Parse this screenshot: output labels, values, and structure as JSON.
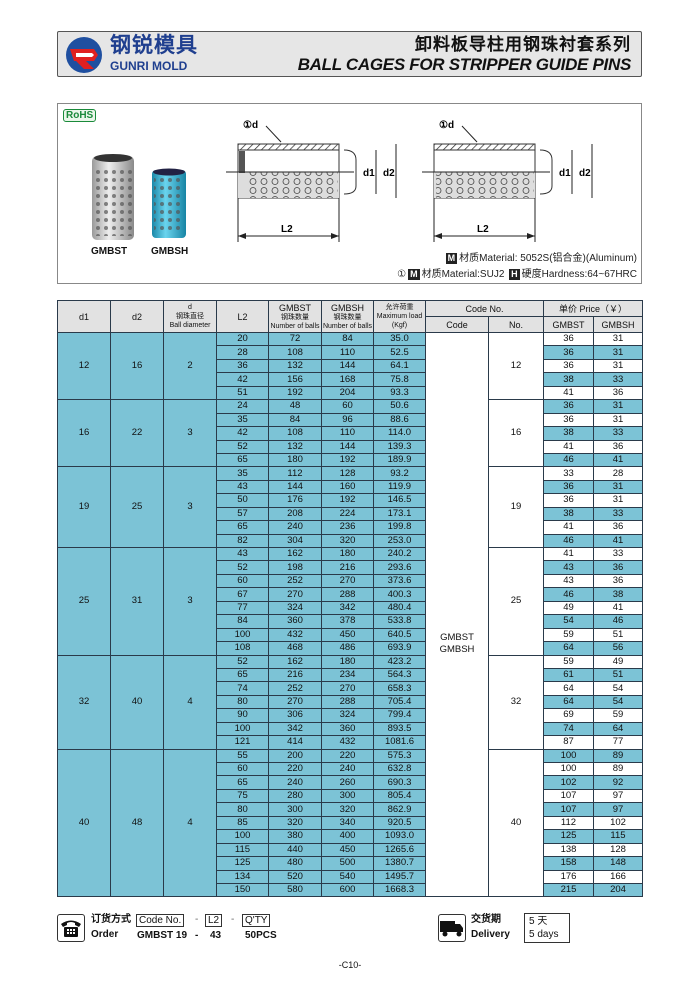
{
  "header": {
    "brand_cn": "钢锐模具",
    "brand_en": "GUNRI MOLD",
    "title_cn": "卸料板导柱用钢珠衬套系列",
    "title_en": "BALL CAGES FOR STRIPPER GUIDE PINS"
  },
  "figure": {
    "rohs": "RoHS",
    "products": [
      "GMBST",
      "GMBSH"
    ],
    "product_colors": {
      "GMBST": "#c8c8c8",
      "GMBSH": "#2aa6c8"
    },
    "diagram_labels": {
      "ball": "①d",
      "d1": "d1",
      "d2": "d2",
      "L2": "L2"
    },
    "material_1": {
      "badge": "M",
      "text": "材质Material: 5052S(铝合金)(Aluminum)"
    },
    "material_2": {
      "prefix": "①",
      "badge_m": "M",
      "text": "材质Material:SUJ2",
      "badge_h": "H",
      "hardness": "硬度Hardness:64~67HRC"
    }
  },
  "table": {
    "headers": {
      "d1": "d1",
      "d2": "d2",
      "d": "d",
      "d_cn": "钢珠直径",
      "d_en": "Ball diameter",
      "L2": "L2",
      "gmbst": "GMBST",
      "gmbsh": "GMBSH",
      "balls_cn": "钢珠数量",
      "balls_en": "Number of balls",
      "load_cn": "允许荷重",
      "load_en": "Maximum load",
      "load_unit": "(Kgf)",
      "code_no": "Code No.",
      "code": "Code",
      "no": "No.",
      "price": "单价 Price（￥）",
      "price_gmbst": "GMBST",
      "price_gmbsh": "GMBSH"
    },
    "codes": [
      "GMBST",
      "GMBSH"
    ],
    "columns": [
      "L2",
      "GMBST balls",
      "GMBSH balls",
      "Max load",
      "Price GMBST",
      "Price GMBSH"
    ],
    "groups": [
      {
        "d1": "12",
        "d2": "16",
        "d": "2",
        "no": "12",
        "rows": [
          [
            "20",
            "72",
            "84",
            "35.0",
            "36",
            "31"
          ],
          [
            "28",
            "108",
            "110",
            "52.5",
            "36",
            "31"
          ],
          [
            "36",
            "132",
            "144",
            "64.1",
            "36",
            "31"
          ],
          [
            "42",
            "156",
            "168",
            "75.8",
            "38",
            "33"
          ],
          [
            "51",
            "192",
            "204",
            "93.3",
            "41",
            "36"
          ]
        ]
      },
      {
        "d1": "16",
        "d2": "22",
        "d": "3",
        "no": "16",
        "rows": [
          [
            "24",
            "48",
            "60",
            "50.6",
            "36",
            "31"
          ],
          [
            "35",
            "84",
            "96",
            "88.6",
            "36",
            "31"
          ],
          [
            "42",
            "108",
            "110",
            "114.0",
            "38",
            "33"
          ],
          [
            "52",
            "132",
            "144",
            "139.3",
            "41",
            "36"
          ],
          [
            "65",
            "180",
            "192",
            "189.9",
            "46",
            "41"
          ]
        ]
      },
      {
        "d1": "19",
        "d2": "25",
        "d": "3",
        "no": "19",
        "rows": [
          [
            "35",
            "112",
            "128",
            "93.2",
            "33",
            "28"
          ],
          [
            "43",
            "144",
            "160",
            "119.9",
            "36",
            "31"
          ],
          [
            "50",
            "176",
            "192",
            "146.5",
            "36",
            "31"
          ],
          [
            "57",
            "208",
            "224",
            "173.1",
            "38",
            "33"
          ],
          [
            "65",
            "240",
            "236",
            "199.8",
            "41",
            "36"
          ],
          [
            "82",
            "304",
            "320",
            "253.0",
            "46",
            "41"
          ]
        ]
      },
      {
        "d1": "25",
        "d2": "31",
        "d": "3",
        "no": "25",
        "rows": [
          [
            "43",
            "162",
            "180",
            "240.2",
            "41",
            "33"
          ],
          [
            "52",
            "198",
            "216",
            "293.6",
            "43",
            "36"
          ],
          [
            "60",
            "252",
            "270",
            "373.6",
            "43",
            "36"
          ],
          [
            "67",
            "270",
            "288",
            "400.3",
            "46",
            "38"
          ],
          [
            "77",
            "324",
            "342",
            "480.4",
            "49",
            "41"
          ],
          [
            "84",
            "360",
            "378",
            "533.8",
            "54",
            "46"
          ],
          [
            "100",
            "432",
            "450",
            "640.5",
            "59",
            "51"
          ],
          [
            "108",
            "468",
            "486",
            "693.9",
            "64",
            "56"
          ]
        ]
      },
      {
        "d1": "32",
        "d2": "40",
        "d": "4",
        "no": "32",
        "rows": [
          [
            "52",
            "162",
            "180",
            "423.2",
            "59",
            "49"
          ],
          [
            "65",
            "216",
            "234",
            "564.3",
            "61",
            "51"
          ],
          [
            "74",
            "252",
            "270",
            "658.3",
            "64",
            "54"
          ],
          [
            "80",
            "270",
            "288",
            "705.4",
            "64",
            "54"
          ],
          [
            "90",
            "306",
            "324",
            "799.4",
            "69",
            "59"
          ],
          [
            "100",
            "342",
            "360",
            "893.5",
            "74",
            "64"
          ],
          [
            "121",
            "414",
            "432",
            "1081.6",
            "87",
            "77"
          ]
        ]
      },
      {
        "d1": "40",
        "d2": "48",
        "d": "4",
        "no": "40",
        "rows": [
          [
            "55",
            "200",
            "220",
            "575.3",
            "100",
            "89"
          ],
          [
            "60",
            "220",
            "240",
            "632.8",
            "100",
            "89"
          ],
          [
            "65",
            "240",
            "260",
            "690.3",
            "102",
            "92"
          ],
          [
            "75",
            "280",
            "300",
            "805.4",
            "107",
            "97"
          ],
          [
            "80",
            "300",
            "320",
            "862.9",
            "107",
            "97"
          ],
          [
            "85",
            "320",
            "340",
            "920.5",
            "112",
            "102"
          ],
          [
            "100",
            "380",
            "400",
            "1093.0",
            "125",
            "115"
          ],
          [
            "115",
            "440",
            "450",
            "1265.6",
            "138",
            "128"
          ],
          [
            "125",
            "480",
            "500",
            "1380.7",
            "158",
            "148"
          ],
          [
            "134",
            "520",
            "540",
            "1495.7",
            "176",
            "166"
          ],
          [
            "150",
            "580",
            "600",
            "1668.3",
            "215",
            "204"
          ]
        ]
      }
    ],
    "colors": {
      "cell_blue": "#7cc3d6",
      "header_gray": "#e2e2e2"
    }
  },
  "order": {
    "label_cn": "订货方式",
    "label_en": "Order",
    "box_code": "Code  No.",
    "box_l2": "L2",
    "box_qty": "Q'TY",
    "dash": "-",
    "ex_code": "GMBST 19",
    "ex_l2": "43",
    "ex_qty": "50PCS",
    "icon": "telephone-icon"
  },
  "delivery": {
    "label_cn": "交货期",
    "label_en": "Delivery",
    "days_cn": "5 天",
    "days_en": "5 days",
    "icon": "truck-icon"
  },
  "page_number": "-C10-"
}
